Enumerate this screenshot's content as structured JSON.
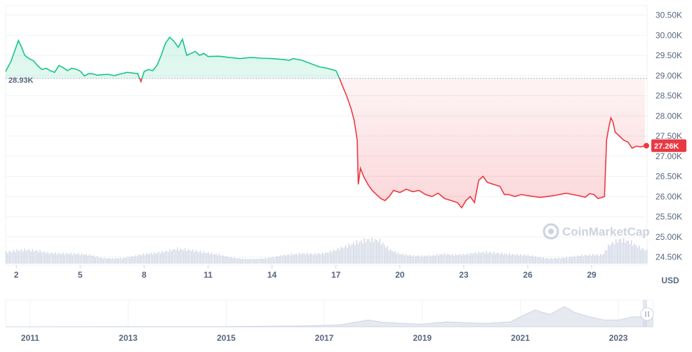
{
  "chart_data": {
    "type": "line",
    "currency": "USD",
    "baseline_label": "28.93K",
    "baseline": 28930,
    "current_label": "27.26K",
    "current": 27260,
    "watermark": "CoinMarketCap",
    "colors": {
      "up": "#16c784",
      "down": "#ea3943",
      "volume": "#cfd6e4",
      "grid": "#eff2f5"
    },
    "y_ticks": [
      "24.50K",
      "25.00K",
      "25.50K",
      "26.00K",
      "26.50K",
      "27.00K",
      "27.50K",
      "28.00K",
      "28.50K",
      "29.00K",
      "29.50K",
      "30.00K",
      "30.50K"
    ],
    "y_tick_values": [
      24500,
      25000,
      25500,
      26000,
      26500,
      27000,
      27500,
      28000,
      28500,
      29000,
      29500,
      30000,
      30500
    ],
    "ylim": [
      24300,
      30700
    ],
    "x_ticks": [
      "2",
      "5",
      "8",
      "11",
      "14",
      "17",
      "20",
      "23",
      "26",
      "29"
    ],
    "x_tick_values": [
      2,
      5,
      8,
      11,
      14,
      17,
      20,
      23,
      26,
      29
    ],
    "xlim": [
      1.5,
      31.6
    ],
    "points": [
      [
        1.5,
        29100
      ],
      [
        1.75,
        29350
      ],
      [
        1.95,
        29650
      ],
      [
        2.1,
        29870
      ],
      [
        2.25,
        29700
      ],
      [
        2.4,
        29500
      ],
      [
        2.6,
        29420
      ],
      [
        2.8,
        29370
      ],
      [
        3.0,
        29250
      ],
      [
        3.2,
        29150
      ],
      [
        3.4,
        29180
      ],
      [
        3.6,
        29120
      ],
      [
        3.8,
        29080
      ],
      [
        4.0,
        29250
      ],
      [
        4.2,
        29200
      ],
      [
        4.4,
        29120
      ],
      [
        4.6,
        29180
      ],
      [
        4.8,
        29160
      ],
      [
        5.0,
        29110
      ],
      [
        5.2,
        28990
      ],
      [
        5.4,
        29050
      ],
      [
        5.6,
        29040
      ],
      [
        5.8,
        29010
      ],
      [
        6.0,
        29020
      ],
      [
        6.3,
        29030
      ],
      [
        6.6,
        29000
      ],
      [
        6.9,
        29040
      ],
      [
        7.2,
        29080
      ],
      [
        7.5,
        29060
      ],
      [
        7.7,
        29050
      ],
      [
        7.85,
        28850
      ],
      [
        8.0,
        29100
      ],
      [
        8.2,
        29150
      ],
      [
        8.4,
        29120
      ],
      [
        8.6,
        29250
      ],
      [
        8.8,
        29500
      ],
      [
        9.0,
        29800
      ],
      [
        9.2,
        29950
      ],
      [
        9.4,
        29850
      ],
      [
        9.6,
        29700
      ],
      [
        9.8,
        29900
      ],
      [
        10.0,
        29500
      ],
      [
        10.2,
        29550
      ],
      [
        10.4,
        29600
      ],
      [
        10.6,
        29500
      ],
      [
        10.8,
        29550
      ],
      [
        11.0,
        29470
      ],
      [
        11.5,
        29480
      ],
      [
        12.0,
        29450
      ],
      [
        12.5,
        29420
      ],
      [
        13.0,
        29450
      ],
      [
        13.5,
        29430
      ],
      [
        14.0,
        29420
      ],
      [
        14.5,
        29400
      ],
      [
        14.8,
        29380
      ],
      [
        15.0,
        29420
      ],
      [
        15.4,
        29380
      ],
      [
        15.8,
        29300
      ],
      [
        16.2,
        29220
      ],
      [
        16.6,
        29180
      ],
      [
        17.0,
        29120
      ],
      [
        17.15,
        28950
      ],
      [
        17.3,
        28750
      ],
      [
        17.5,
        28500
      ],
      [
        17.7,
        28200
      ],
      [
        17.85,
        27900
      ],
      [
        18.0,
        27400
      ],
      [
        18.05,
        26300
      ],
      [
        18.15,
        26700
      ],
      [
        18.3,
        26500
      ],
      [
        18.5,
        26300
      ],
      [
        18.7,
        26150
      ],
      [
        18.9,
        26050
      ],
      [
        19.1,
        25950
      ],
      [
        19.3,
        25900
      ],
      [
        19.5,
        26000
      ],
      [
        19.7,
        26150
      ],
      [
        20.0,
        26100
      ],
      [
        20.3,
        26180
      ],
      [
        20.6,
        26120
      ],
      [
        20.9,
        26150
      ],
      [
        21.2,
        26050
      ],
      [
        21.5,
        26000
      ],
      [
        21.8,
        26080
      ],
      [
        22.1,
        25950
      ],
      [
        22.4,
        25900
      ],
      [
        22.7,
        25850
      ],
      [
        22.9,
        25720
      ],
      [
        23.1,
        25900
      ],
      [
        23.3,
        26000
      ],
      [
        23.5,
        25850
      ],
      [
        23.7,
        26400
      ],
      [
        23.9,
        26500
      ],
      [
        24.1,
        26350
      ],
      [
        24.4,
        26300
      ],
      [
        24.7,
        26250
      ],
      [
        24.9,
        26050
      ],
      [
        25.1,
        26050
      ],
      [
        25.4,
        26000
      ],
      [
        25.7,
        26050
      ],
      [
        26.0,
        26020
      ],
      [
        26.3,
        26000
      ],
      [
        26.6,
        25980
      ],
      [
        26.9,
        26000
      ],
      [
        27.2,
        26020
      ],
      [
        27.5,
        26050
      ],
      [
        27.8,
        26080
      ],
      [
        28.1,
        26050
      ],
      [
        28.4,
        26020
      ],
      [
        28.7,
        25980
      ],
      [
        28.9,
        26070
      ],
      [
        29.1,
        26050
      ],
      [
        29.3,
        25950
      ],
      [
        29.5,
        25980
      ],
      [
        29.6,
        26000
      ],
      [
        29.7,
        27400
      ],
      [
        29.8,
        27700
      ],
      [
        29.9,
        27950
      ],
      [
        30.0,
        27850
      ],
      [
        30.1,
        27600
      ],
      [
        30.3,
        27500
      ],
      [
        30.5,
        27400
      ],
      [
        30.7,
        27350
      ],
      [
        30.9,
        27200
      ],
      [
        31.1,
        27250
      ],
      [
        31.3,
        27230
      ],
      [
        31.5,
        27260
      ]
    ],
    "volume": [
      [
        1.5,
        0.45
      ],
      [
        2.0,
        0.52
      ],
      [
        2.5,
        0.55
      ],
      [
        3.0,
        0.5
      ],
      [
        3.5,
        0.42
      ],
      [
        4.0,
        0.4
      ],
      [
        4.5,
        0.4
      ],
      [
        5.0,
        0.38
      ],
      [
        5.5,
        0.33
      ],
      [
        6.0,
        0.22
      ],
      [
        6.5,
        0.2
      ],
      [
        7.0,
        0.22
      ],
      [
        7.5,
        0.3
      ],
      [
        8.0,
        0.38
      ],
      [
        8.5,
        0.42
      ],
      [
        9.0,
        0.48
      ],
      [
        9.5,
        0.58
      ],
      [
        10.0,
        0.55
      ],
      [
        10.5,
        0.48
      ],
      [
        11.0,
        0.42
      ],
      [
        11.5,
        0.35
      ],
      [
        12.0,
        0.25
      ],
      [
        12.5,
        0.2
      ],
      [
        13.0,
        0.18
      ],
      [
        13.5,
        0.2
      ],
      [
        14.0,
        0.25
      ],
      [
        14.5,
        0.33
      ],
      [
        15.0,
        0.38
      ],
      [
        15.5,
        0.4
      ],
      [
        16.0,
        0.38
      ],
      [
        16.5,
        0.42
      ],
      [
        17.0,
        0.55
      ],
      [
        17.5,
        0.7
      ],
      [
        18.0,
        0.85
      ],
      [
        18.5,
        0.95
      ],
      [
        19.0,
        0.92
      ],
      [
        19.5,
        0.55
      ],
      [
        20.0,
        0.38
      ],
      [
        20.5,
        0.32
      ],
      [
        21.0,
        0.3
      ],
      [
        21.5,
        0.32
      ],
      [
        22.0,
        0.38
      ],
      [
        22.5,
        0.35
      ],
      [
        23.0,
        0.36
      ],
      [
        23.5,
        0.42
      ],
      [
        24.0,
        0.45
      ],
      [
        24.5,
        0.42
      ],
      [
        25.0,
        0.38
      ],
      [
        25.5,
        0.35
      ],
      [
        26.0,
        0.33
      ],
      [
        26.5,
        0.25
      ],
      [
        27.0,
        0.2
      ],
      [
        27.5,
        0.22
      ],
      [
        28.0,
        0.27
      ],
      [
        28.5,
        0.32
      ],
      [
        29.0,
        0.35
      ],
      [
        29.5,
        0.35
      ],
      [
        29.8,
        0.75
      ],
      [
        30.3,
        0.95
      ],
      [
        30.8,
        0.85
      ],
      [
        31.3,
        0.6
      ],
      [
        31.6,
        0.5
      ]
    ],
    "navigator": {
      "ticks": [
        "2011",
        "2013",
        "2015",
        "2017",
        "2019",
        "2021",
        "2023"
      ],
      "tick_values": [
        2011,
        2013,
        2015,
        2017,
        2019,
        2021,
        2023
      ],
      "xlim": [
        2010.5,
        2023.7
      ],
      "profile": [
        [
          2010.5,
          0
        ],
        [
          2013,
          0.005
        ],
        [
          2015,
          0.01
        ],
        [
          2016.5,
          0.03
        ],
        [
          2017.3,
          0.08
        ],
        [
          2017.9,
          0.3
        ],
        [
          2018.2,
          0.2
        ],
        [
          2018.6,
          0.15
        ],
        [
          2019.0,
          0.12
        ],
        [
          2019.5,
          0.22
        ],
        [
          2019.9,
          0.18
        ],
        [
          2020.3,
          0.15
        ],
        [
          2020.8,
          0.22
        ],
        [
          2021.1,
          0.55
        ],
        [
          2021.3,
          0.75
        ],
        [
          2021.6,
          0.55
        ],
        [
          2021.9,
          0.9
        ],
        [
          2022.1,
          0.65
        ],
        [
          2022.4,
          0.45
        ],
        [
          2022.7,
          0.3
        ],
        [
          2023.0,
          0.3
        ],
        [
          2023.3,
          0.45
        ],
        [
          2023.7,
          0.42
        ]
      ]
    }
  }
}
